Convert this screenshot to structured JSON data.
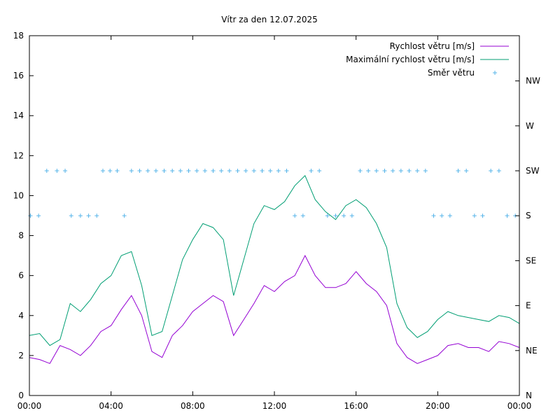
{
  "chart_data": {
    "type": "line",
    "title": "Vítr za den 12.07.2025",
    "xlabel": "",
    "ylabel": "",
    "x_ticks": [
      "00:00",
      "04:00",
      "08:00",
      "12:00",
      "16:00",
      "20:00",
      "00:00"
    ],
    "x_range_hours": [
      0,
      24
    ],
    "y_range": [
      0,
      18
    ],
    "y_ticks": [
      "0",
      "2",
      "4",
      "6",
      "8",
      "10",
      "12",
      "14",
      "16",
      "18"
    ],
    "y2_ticks": [
      "N",
      "NE",
      "E",
      "SE",
      "S",
      "SW",
      "W",
      "NW"
    ],
    "legend_position": "top-right",
    "grid": false,
    "series": [
      {
        "name": "Rychlost větru [m/s]",
        "color": "#9400d3",
        "style": "line",
        "x_hours": [
          0,
          0.5,
          1,
          1.5,
          2,
          2.5,
          3,
          3.5,
          4,
          4.5,
          5,
          5.5,
          6,
          6.5,
          7,
          7.5,
          8,
          8.5,
          9,
          9.5,
          10,
          10.5,
          11,
          11.5,
          12,
          12.5,
          13,
          13.5,
          14,
          14.5,
          15,
          15.5,
          16,
          16.5,
          17,
          17.5,
          18,
          18.5,
          19,
          19.5,
          20,
          20.5,
          21,
          21.5,
          22,
          22.5,
          23,
          23.5,
          24
        ],
        "values": [
          1.9,
          1.8,
          1.6,
          2.5,
          2.3,
          2.0,
          2.5,
          3.2,
          3.5,
          4.3,
          5.0,
          4.0,
          2.2,
          1.9,
          3.0,
          3.5,
          4.2,
          4.6,
          5.0,
          4.7,
          3.0,
          3.8,
          4.6,
          5.5,
          5.2,
          5.7,
          6.0,
          7.0,
          6.0,
          5.4,
          5.4,
          5.6,
          6.2,
          5.6,
          5.2,
          4.5,
          2.6,
          1.9,
          1.6,
          1.8,
          2.0,
          2.5,
          2.6,
          2.4,
          2.4,
          2.2,
          2.7,
          2.6,
          2.4
        ]
      },
      {
        "name": "Maximální rychlost větru [m/s]",
        "color": "#009e73",
        "style": "line",
        "x_hours": [
          0,
          0.5,
          1,
          1.5,
          2,
          2.5,
          3,
          3.5,
          4,
          4.5,
          5,
          5.5,
          6,
          6.5,
          7,
          7.5,
          8,
          8.5,
          9,
          9.5,
          10,
          10.5,
          11,
          11.5,
          12,
          12.5,
          13,
          13.5,
          14,
          14.5,
          15,
          15.5,
          16,
          16.5,
          17,
          17.5,
          18,
          18.5,
          19,
          19.5,
          20,
          20.5,
          21,
          21.5,
          22,
          22.5,
          23,
          23.5,
          24
        ],
        "values": [
          3.0,
          3.1,
          2.5,
          2.8,
          4.6,
          4.2,
          4.8,
          5.6,
          6.0,
          7.0,
          7.2,
          5.5,
          3.0,
          3.2,
          5.0,
          6.8,
          7.8,
          8.6,
          8.4,
          7.8,
          5.0,
          6.8,
          8.6,
          9.5,
          9.3,
          9.7,
          10.5,
          11.0,
          9.8,
          9.2,
          8.8,
          9.5,
          9.8,
          9.4,
          8.6,
          7.4,
          4.6,
          3.4,
          2.9,
          3.2,
          3.8,
          4.2,
          4.0,
          3.9,
          3.8,
          3.7,
          4.0,
          3.9,
          3.6
        ]
      },
      {
        "name": "Směr větru",
        "color": "#56b4e9",
        "style": "points",
        "direction_scale": "S",
        "points": [
          [
            0.05,
            "S"
          ],
          [
            0.45,
            "S"
          ],
          [
            0.85,
            "SW"
          ],
          [
            1.35,
            "SW"
          ],
          [
            1.75,
            "SW"
          ],
          [
            2.05,
            "S"
          ],
          [
            2.5,
            "S"
          ],
          [
            2.9,
            "S"
          ],
          [
            3.3,
            "S"
          ],
          [
            3.6,
            "SW"
          ],
          [
            3.95,
            "SW"
          ],
          [
            4.3,
            "SW"
          ],
          [
            4.65,
            "S"
          ],
          [
            5.0,
            "SW"
          ],
          [
            5.4,
            "SW"
          ],
          [
            5.8,
            "SW"
          ],
          [
            6.2,
            "SW"
          ],
          [
            6.6,
            "SW"
          ],
          [
            7.0,
            "SW"
          ],
          [
            7.4,
            "SW"
          ],
          [
            7.8,
            "SW"
          ],
          [
            8.2,
            "SW"
          ],
          [
            8.6,
            "SW"
          ],
          [
            9.0,
            "SW"
          ],
          [
            9.4,
            "SW"
          ],
          [
            9.8,
            "SW"
          ],
          [
            10.2,
            "SW"
          ],
          [
            10.6,
            "SW"
          ],
          [
            11.0,
            "SW"
          ],
          [
            11.4,
            "SW"
          ],
          [
            11.8,
            "SW"
          ],
          [
            12.2,
            "SW"
          ],
          [
            12.6,
            "SW"
          ],
          [
            13.0,
            "S"
          ],
          [
            13.4,
            "S"
          ],
          [
            13.8,
            "SW"
          ],
          [
            14.2,
            "SW"
          ],
          [
            14.6,
            "S"
          ],
          [
            15.0,
            "S"
          ],
          [
            15.4,
            "S"
          ],
          [
            15.8,
            "S"
          ],
          [
            16.2,
            "SW"
          ],
          [
            16.6,
            "SW"
          ],
          [
            17.0,
            "SW"
          ],
          [
            17.4,
            "SW"
          ],
          [
            17.8,
            "SW"
          ],
          [
            18.2,
            "SW"
          ],
          [
            18.6,
            "SW"
          ],
          [
            19.0,
            "SW"
          ],
          [
            19.4,
            "SW"
          ],
          [
            19.8,
            "S"
          ],
          [
            20.2,
            "S"
          ],
          [
            20.6,
            "S"
          ],
          [
            21.0,
            "SW"
          ],
          [
            21.4,
            "SW"
          ],
          [
            21.8,
            "S"
          ],
          [
            22.2,
            "S"
          ],
          [
            22.6,
            "SW"
          ],
          [
            23.0,
            "SW"
          ],
          [
            23.4,
            "S"
          ],
          [
            23.8,
            "S"
          ]
        ]
      }
    ]
  }
}
